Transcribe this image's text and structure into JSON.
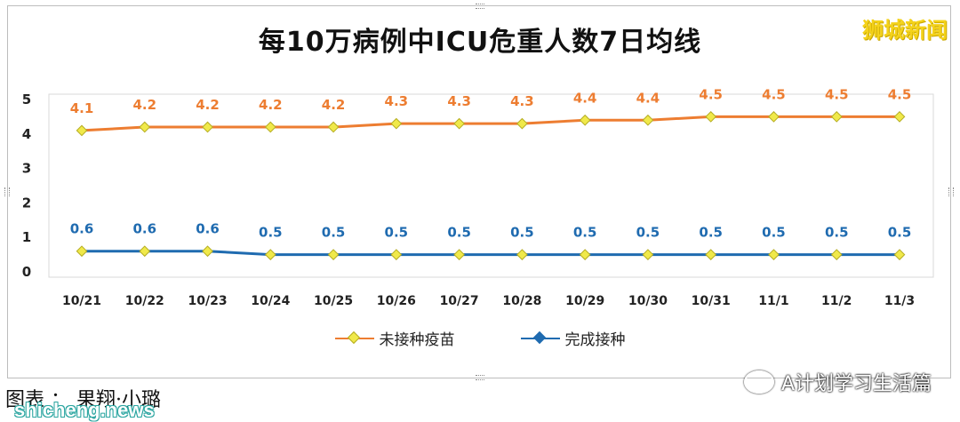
{
  "title": "每10万病例中ICU危重人数7日均线",
  "brand": "狮城新闻",
  "caption": "图表 ： 果翔·小璐",
  "source": "shicheng.news",
  "watermark": "A计划学习生活篇",
  "colors": {
    "orange": "#ed7d31",
    "blue": "#1f6bb0",
    "marker": "#f0e94a"
  },
  "chart_data": {
    "type": "line",
    "title": "每10万病例中ICU危重人数7日均线",
    "categories": [
      "10/21",
      "10/22",
      "10/23",
      "10/24",
      "10/25",
      "10/26",
      "10/27",
      "10/28",
      "10/29",
      "10/30",
      "10/31",
      "11/1",
      "11/2",
      "11/3"
    ],
    "series": [
      {
        "name": "未接种疫苗",
        "color": "#ed7d31",
        "values": [
          4.1,
          4.2,
          4.2,
          4.2,
          4.2,
          4.3,
          4.3,
          4.3,
          4.4,
          4.4,
          4.5,
          4.5,
          4.5,
          4.5
        ]
      },
      {
        "name": "完成接种",
        "color": "#1f6bb0",
        "values": [
          0.6,
          0.6,
          0.6,
          0.5,
          0.5,
          0.5,
          0.5,
          0.5,
          0.5,
          0.5,
          0.5,
          0.5,
          0.5,
          0.5
        ]
      }
    ],
    "ylim": [
      0,
      5
    ],
    "yticks": [
      0,
      1,
      2,
      3,
      4,
      5
    ],
    "grid": false,
    "legend": "bottom"
  }
}
